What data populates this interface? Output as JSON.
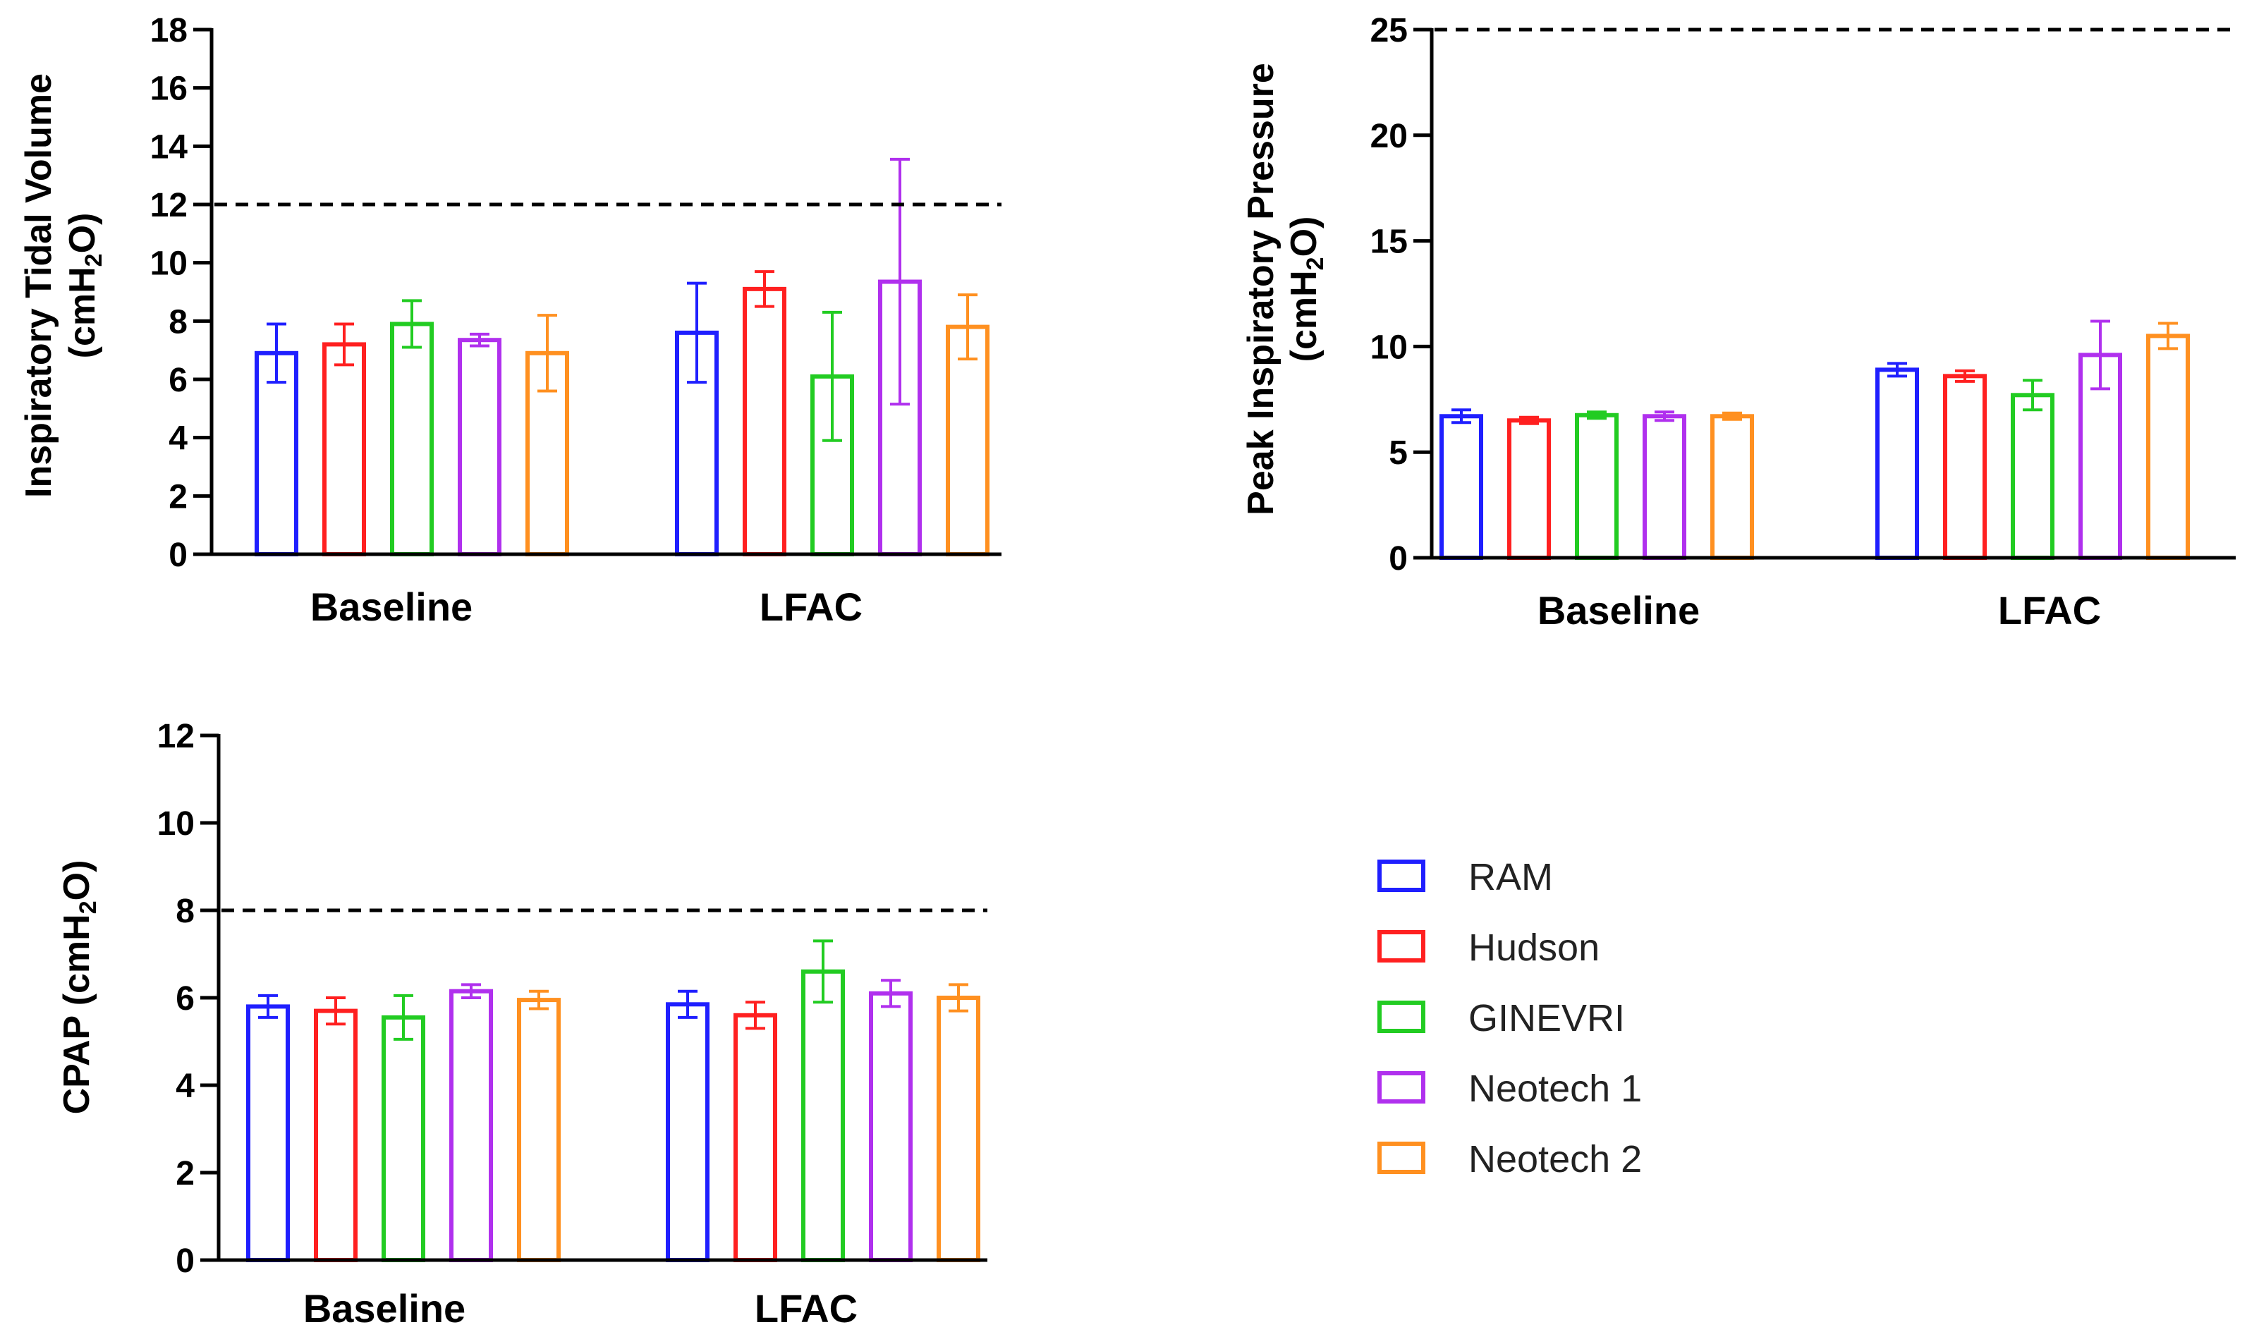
{
  "colors": {
    "RAM": "#1f1fff",
    "Hudson": "#ff2020",
    "GINEVRI": "#22cc22",
    "Neotech 1": "#b030ee",
    "Neotech 2": "#ff9020"
  },
  "legend": [
    "RAM",
    "Hudson",
    "GINEVRI",
    "Neotech 1",
    "Neotech 2"
  ],
  "chart_data": [
    {
      "id": "tidal",
      "type": "bar",
      "ylabel_line1": "Inspiratory Tidal Volume",
      "ylabel_line2": "(cmH",
      "ylabel_sub": "2",
      "ylabel_end": "O)",
      "ylim": [
        0,
        18
      ],
      "yticks": [
        0,
        2,
        4,
        6,
        8,
        10,
        12,
        14,
        16,
        18
      ],
      "reference_line": 12,
      "categories": [
        "Baseline",
        "LFAC"
      ],
      "series": [
        {
          "name": "RAM",
          "values": [
            6.9,
            7.6
          ],
          "errors": [
            1.0,
            1.7
          ]
        },
        {
          "name": "Hudson",
          "values": [
            7.2,
            9.1
          ],
          "errors": [
            0.7,
            0.6
          ]
        },
        {
          "name": "GINEVRI",
          "values": [
            7.9,
            6.1
          ],
          "errors": [
            0.8,
            2.2
          ]
        },
        {
          "name": "Neotech 1",
          "values": [
            7.35,
            9.35
          ],
          "errors": [
            0.2,
            4.2
          ]
        },
        {
          "name": "Neotech 2",
          "values": [
            6.9,
            7.8
          ],
          "errors": [
            1.3,
            1.1
          ]
        }
      ]
    },
    {
      "id": "pip",
      "type": "bar",
      "ylabel_line1": "Peak Inspiratory Pressure",
      "ylabel_line2": "(cmH",
      "ylabel_sub": "2",
      "ylabel_end": "O)",
      "ylim": [
        0,
        25
      ],
      "yticks": [
        0,
        5,
        10,
        15,
        20,
        25
      ],
      "reference_line": 25,
      "categories": [
        "Baseline",
        "LFAC"
      ],
      "series": [
        {
          "name": "RAM",
          "values": [
            6.7,
            8.9
          ],
          "errors": [
            0.3,
            0.3
          ]
        },
        {
          "name": "Hudson",
          "values": [
            6.5,
            8.6
          ],
          "errors": [
            0.15,
            0.25
          ]
        },
        {
          "name": "GINEVRI",
          "values": [
            6.75,
            7.7
          ],
          "errors": [
            0.15,
            0.7
          ]
        },
        {
          "name": "Neotech 1",
          "values": [
            6.7,
            9.6
          ],
          "errors": [
            0.2,
            1.6
          ]
        },
        {
          "name": "Neotech 2",
          "values": [
            6.7,
            10.5
          ],
          "errors": [
            0.15,
            0.6
          ]
        }
      ]
    },
    {
      "id": "cpap",
      "type": "bar",
      "ylabel_line1": "CPAP (cmH",
      "ylabel_sub": "2",
      "ylabel_end": "O)",
      "ylim": [
        0,
        12
      ],
      "yticks": [
        0,
        2,
        4,
        6,
        8,
        10,
        12
      ],
      "reference_line": 8,
      "categories": [
        "Baseline",
        "LFAC"
      ],
      "series": [
        {
          "name": "RAM",
          "values": [
            5.8,
            5.85
          ],
          "errors": [
            0.25,
            0.3
          ]
        },
        {
          "name": "Hudson",
          "values": [
            5.7,
            5.6
          ],
          "errors": [
            0.3,
            0.3
          ]
        },
        {
          "name": "GINEVRI",
          "values": [
            5.55,
            6.6
          ],
          "errors": [
            0.5,
            0.7
          ]
        },
        {
          "name": "Neotech 1",
          "values": [
            6.15,
            6.1
          ],
          "errors": [
            0.15,
            0.3
          ]
        },
        {
          "name": "Neotech 2",
          "values": [
            5.95,
            6.0
          ],
          "errors": [
            0.2,
            0.3
          ]
        }
      ]
    }
  ]
}
